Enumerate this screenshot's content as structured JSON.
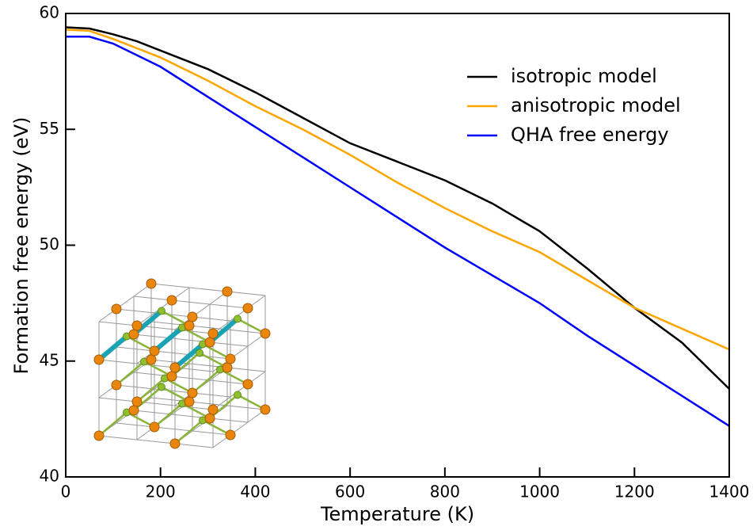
{
  "chart_data": {
    "type": "line",
    "x_label": "Temperature (K)",
    "y_label": "Formation free energy (eV)",
    "x": [
      0,
      50,
      100,
      150,
      200,
      300,
      400,
      500,
      600,
      700,
      800,
      900,
      1000,
      1100,
      1200,
      1300,
      1400
    ],
    "series": [
      {
        "name": "isotropic model",
        "color": "#000000",
        "values": [
          59.4,
          59.35,
          59.1,
          58.8,
          58.4,
          57.6,
          56.6,
          55.5,
          54.4,
          53.6,
          52.8,
          51.8,
          50.6,
          49.0,
          47.3,
          45.8,
          43.8
        ]
      },
      {
        "name": "anisotropic model",
        "color": "#ffa500",
        "values": [
          59.3,
          59.25,
          58.9,
          58.5,
          58.1,
          57.1,
          56.0,
          55.0,
          53.9,
          52.7,
          51.6,
          50.6,
          49.7,
          48.5,
          47.3,
          46.4,
          45.5
        ]
      },
      {
        "name": "QHA free energy",
        "color": "#0000ff",
        "values": [
          59.0,
          59.0,
          58.7,
          58.2,
          57.7,
          56.4,
          55.1,
          53.8,
          52.5,
          51.2,
          49.9,
          48.7,
          47.5,
          46.1,
          44.8,
          43.5,
          42.2
        ]
      }
    ],
    "xlim": [
      0,
      1400
    ],
    "xticks": [
      0,
      200,
      400,
      600,
      800,
      1000,
      1200,
      1400
    ],
    "ylim": [
      40,
      60
    ],
    "yticks": [
      40,
      45,
      50,
      55,
      60
    ],
    "legend": "upper right"
  }
}
